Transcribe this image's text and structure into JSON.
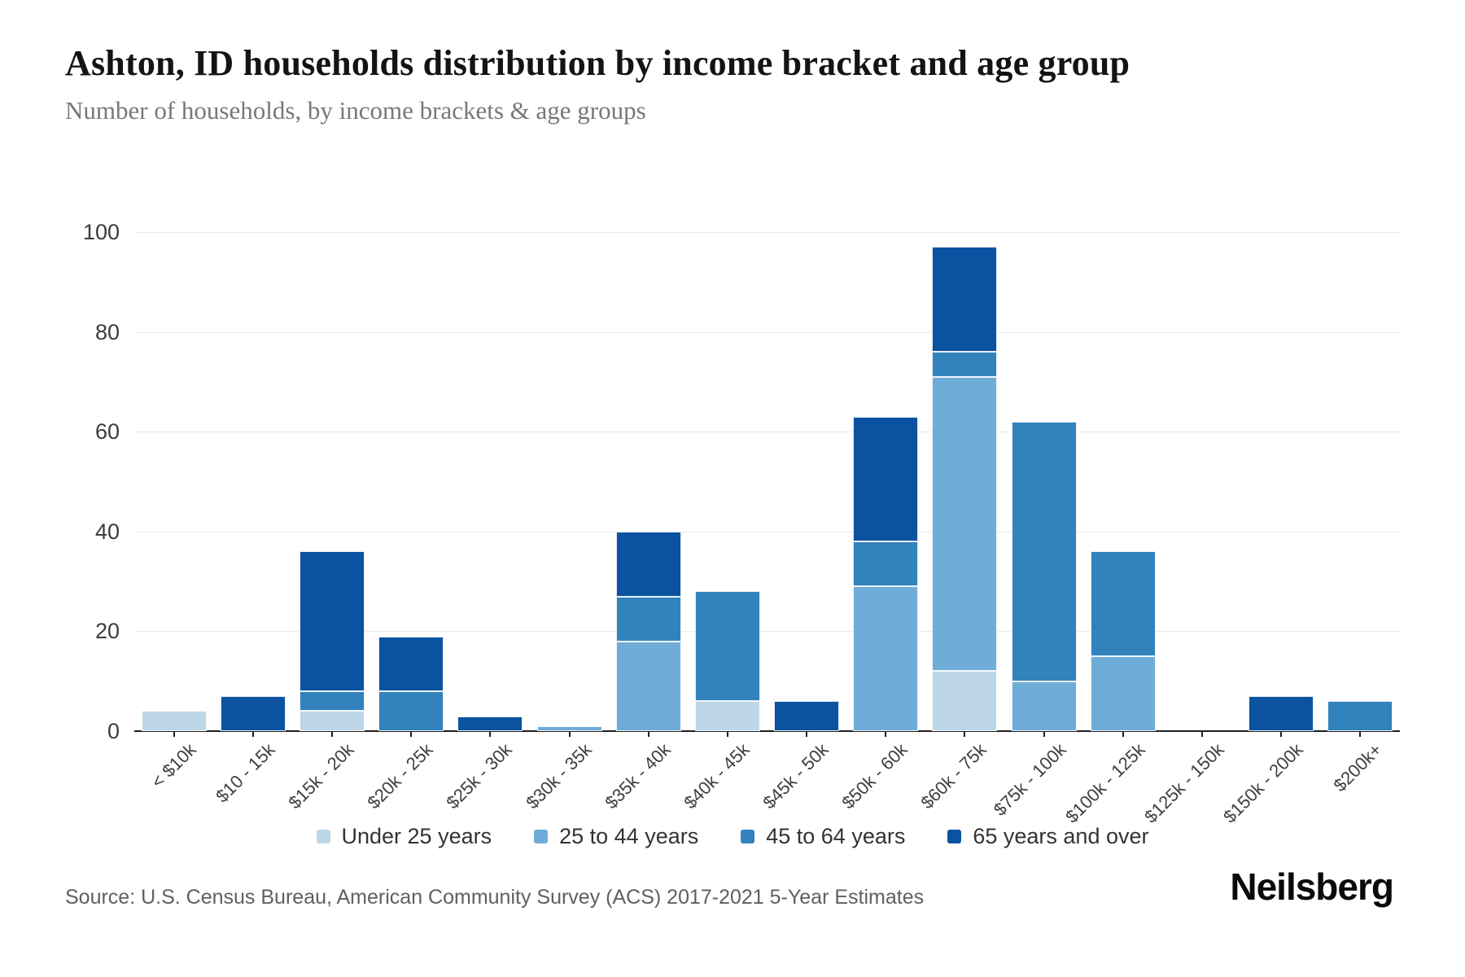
{
  "header": {
    "title": "Ashton, ID households distribution by income bracket and age group",
    "subtitle": "Number of households, by income brackets & age groups"
  },
  "footer": {
    "source": "Source: U.S. Census Bureau, American Community Survey (ACS) 2017-2021 5-Year Estimates",
    "logo": "Neilsberg"
  },
  "chart_data": {
    "type": "bar",
    "stacked": true,
    "title": "Ashton, ID households distribution by income bracket and age group",
    "subtitle": "Number of households, by income brackets & age groups",
    "xlabel": "",
    "ylabel": "Number of households",
    "ylim": [
      0,
      100
    ],
    "yticks": [
      0,
      20,
      40,
      60,
      80,
      100
    ],
    "grid": "horizontal",
    "legend_position": "bottom",
    "categories": [
      "< $10k",
      "$10 - 15k",
      "$15k - 20k",
      "$20k - 25k",
      "$25k - 30k",
      "$30k - 35k",
      "$35k - 40k",
      "$40k - 45k",
      "$45k - 50k",
      "$50k - 60k",
      "$60k - 75k",
      "$75k - 100k",
      "$100k - 125k",
      "$125k - 150k",
      "$150k - 200k",
      "$200k+"
    ],
    "series": [
      {
        "name": "Under 25 years",
        "color": "#bdd7e9",
        "values": [
          4,
          0,
          4,
          0,
          0,
          0,
          0,
          6,
          0,
          0,
          12,
          0,
          0,
          0,
          0,
          0
        ]
      },
      {
        "name": "25 to 44 years",
        "color": "#6fadd9",
        "values": [
          0,
          0,
          0,
          0,
          0,
          1,
          18,
          0,
          0,
          29,
          59,
          10,
          15,
          0,
          0,
          0
        ]
      },
      {
        "name": "45 to 64 years",
        "color": "#3182bd",
        "values": [
          0,
          0,
          4,
          8,
          0,
          0,
          9,
          22,
          0,
          9,
          5,
          52,
          21,
          0,
          0,
          6
        ]
      },
      {
        "name": "65 years and over",
        "color": "#0b53a0",
        "values": [
          0,
          7,
          28,
          11,
          3,
          0,
          13,
          0,
          6,
          25,
          21,
          0,
          0,
          0,
          7,
          0
        ]
      }
    ],
    "totals": [
      4,
      7,
      36,
      19,
      3,
      1,
      40,
      28,
      6,
      63,
      97,
      62,
      36,
      0,
      7,
      6
    ]
  }
}
